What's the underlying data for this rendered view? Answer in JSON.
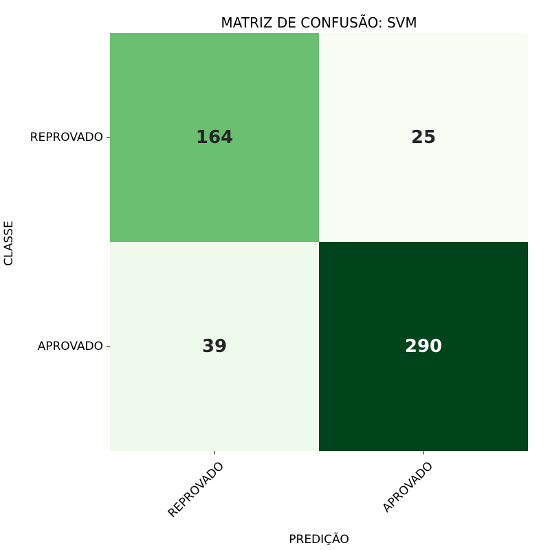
{
  "chart_data": {
    "type": "heatmap",
    "title": "MATRIZ DE CONFUSÃO: SVM",
    "xlabel": "PREDIÇÃO",
    "ylabel": "CLASSE",
    "x_categories": [
      "REPROVADO",
      "APROVADO"
    ],
    "y_categories": [
      "REPROVADO",
      "APROVADO"
    ],
    "values": [
      [
        164,
        25
      ],
      [
        39,
        290
      ]
    ],
    "colormap": "Greens",
    "colorbar": false,
    "colors": {
      "low": "#f7fcf5",
      "high": "#00441b",
      "text_dark": "#262626",
      "text_light": "#ffffff"
    }
  }
}
